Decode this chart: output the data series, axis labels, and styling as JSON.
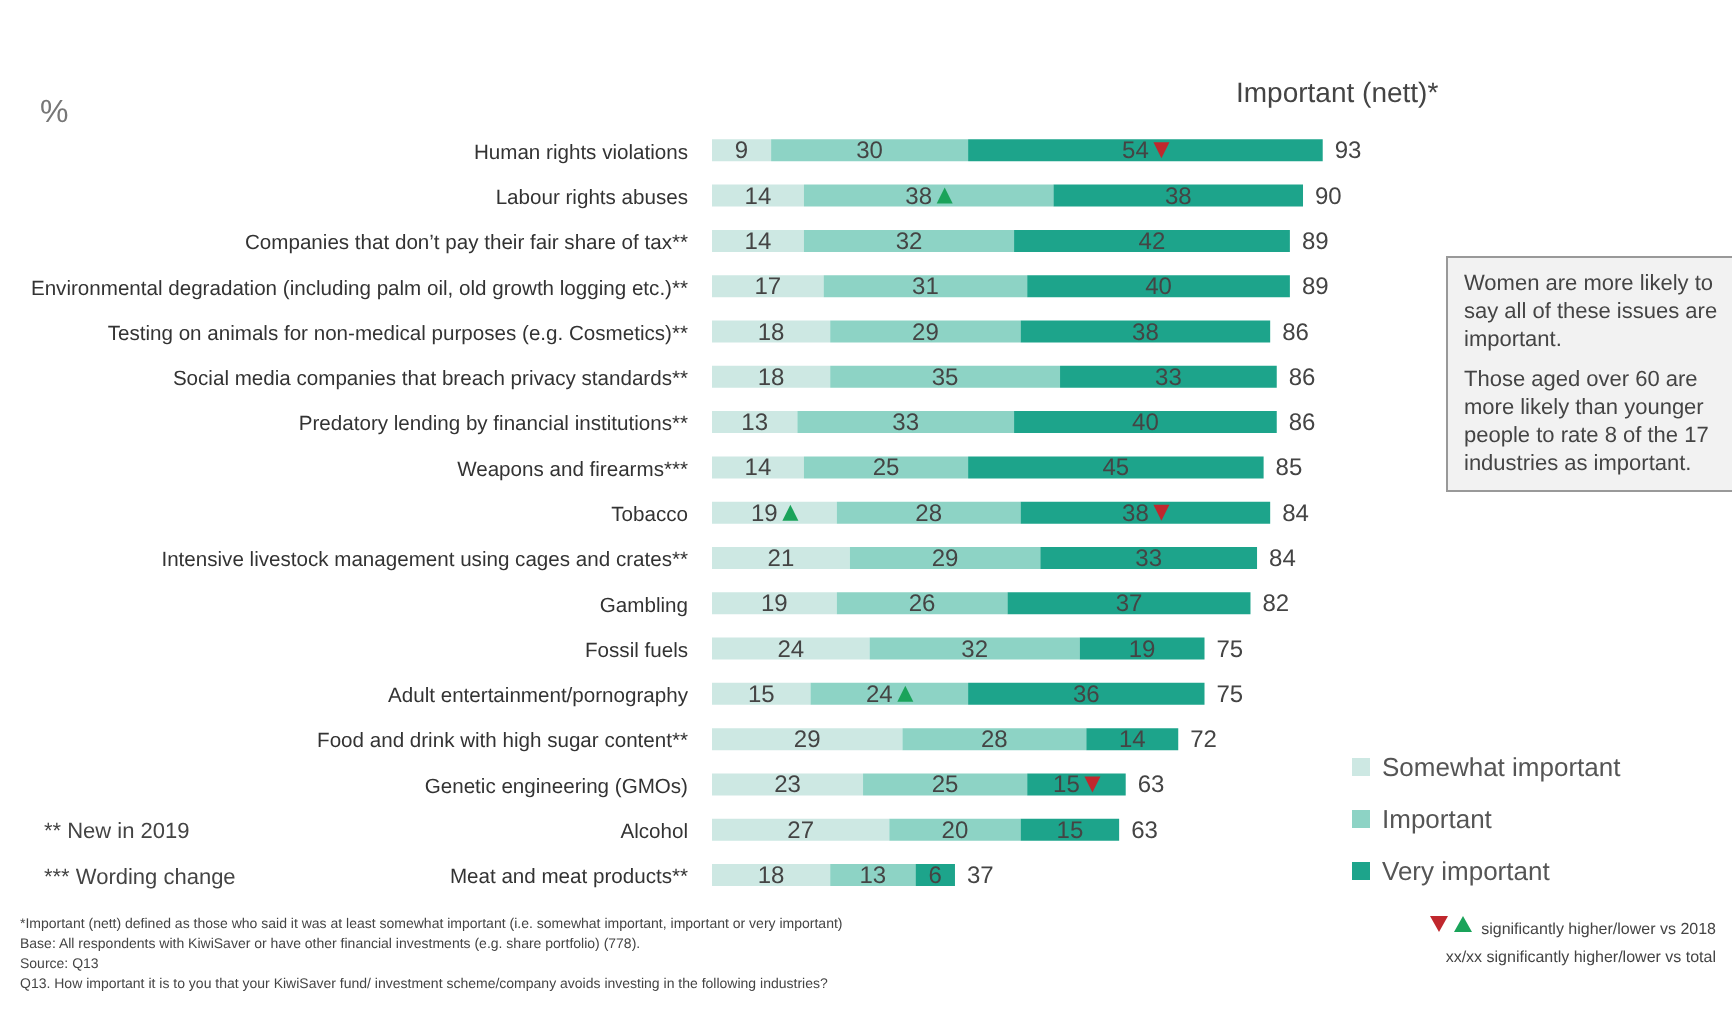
{
  "chart_data": {
    "type": "bar",
    "orientation": "horizontal",
    "stacked": true,
    "data_labels": true,
    "legend": "bottom right",
    "title": "Important (nett)*",
    "ylabel": "%",
    "categories": [
      "Human rights violations",
      "Labour rights abuses",
      "Companies that don’t pay their fair share of tax**",
      "Environmental degradation (including palm oil, old growth logging etc.)**",
      "Testing on animals for non-medical purposes (e.g. Cosmetics)**",
      "Social media companies that breach privacy standards**",
      "Predatory lending by financial institutions**",
      "Weapons and firearms***",
      "Tobacco",
      "Intensive livestock management using cages and crates**",
      "Gambling",
      "Fossil fuels",
      "Adult entertainment/pornography",
      "Food and drink with high sugar content**",
      "Genetic engineering (GMOs)",
      "Alcohol",
      "Meat and meat products**"
    ],
    "series": [
      {
        "name": "Somewhat important",
        "color": "#cde8e3",
        "values": [
          9,
          14,
          14,
          17,
          18,
          18,
          13,
          14,
          19,
          21,
          19,
          24,
          15,
          29,
          23,
          27,
          18
        ]
      },
      {
        "name": "Important",
        "color": "#8dd3c5",
        "values": [
          30,
          38,
          32,
          31,
          29,
          35,
          33,
          25,
          28,
          29,
          26,
          32,
          24,
          28,
          25,
          20,
          13
        ]
      },
      {
        "name": "Very important",
        "color": "#1da48b",
        "values": [
          54,
          38,
          42,
          40,
          38,
          33,
          40,
          45,
          38,
          33,
          37,
          19,
          36,
          14,
          15,
          15,
          6
        ]
      }
    ],
    "totals": [
      "93",
      "90",
      "89",
      "89",
      "86",
      "86",
      "86",
      "85",
      "84",
      "84",
      "82",
      "75",
      "75",
      "72",
      "63",
      "63",
      "37"
    ],
    "annotations": [
      "** New in 2019",
      "*** Wording change",
      "Women are more likely to say all of these issues are important.",
      "Those aged over 60 are more likely than younger people to rate 8 of the 17 industries as important.",
      "*Important (nett) defined as those who said it was at least somewhat important (i.e. somewhat important, important or very important)",
      "Base: All respondents with KiwiSaver or have other financial investments (e.g. share portfolio) (778).",
      "Source: Q13",
      "Q13. How important it is to you that your KiwiSaver fund/ investment scheme/company avoids investing in the following industries?",
      "significantly higher/lower vs 2018",
      "xx/xx significantly higher/lower vs total"
    ]
  }
}
